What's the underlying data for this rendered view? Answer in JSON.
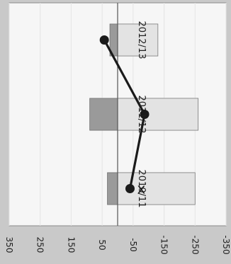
{
  "chart_data": {
    "type": "bar",
    "orientation": "horizontal, printed rotated 90° clockwise",
    "categories": [
      "2010/11",
      "2011/12",
      "2012/13"
    ],
    "series": [
      {
        "kind": "bar",
        "values": [
          [
            33,
            -250
          ],
          [
            90,
            -260
          ],
          [
            25,
            -130
          ]
        ],
        "colors": [
          "#9a9a9a",
          "#e3e3e3"
        ]
      },
      {
        "kind": "line",
        "values": [
          -40,
          -87,
          43
        ],
        "color": "#1a1a1a"
      }
    ],
    "x_ticks": [
      "350",
      "250",
      "150",
      "50",
      "-50",
      "-150",
      "-250",
      "-350"
    ],
    "xlim": [
      350,
      -350
    ],
    "reference_line": 0,
    "annotation_on_first_point": "x",
    "title": "",
    "xlabel": "",
    "ylabel": ""
  }
}
